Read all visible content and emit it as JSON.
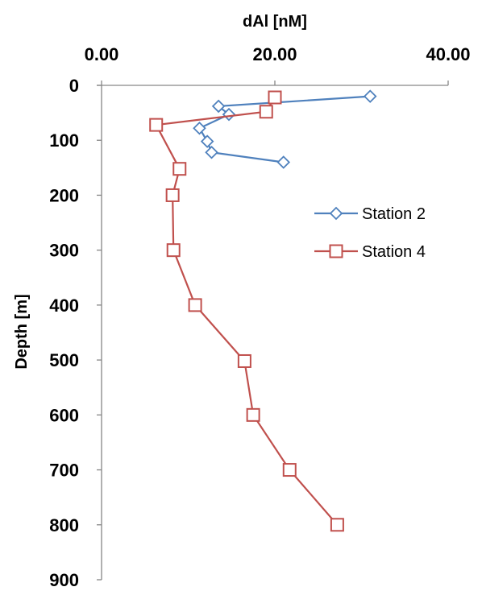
{
  "chart_data": {
    "type": "scatter",
    "xlabel": "dAl [nM]",
    "ylabel": "Depth [m]",
    "x_axis_position": "top",
    "y_axis_reversed": true,
    "xlim": [
      0,
      40
    ],
    "ylim": [
      0,
      900
    ],
    "x_ticks": [
      0,
      20,
      40
    ],
    "x_tick_labels": [
      "0.00",
      "20.00",
      "40.00"
    ],
    "y_ticks": [
      0,
      100,
      200,
      300,
      400,
      500,
      600,
      700,
      800,
      900
    ],
    "y_tick_labels": [
      "0",
      "100",
      "200",
      "300",
      "400",
      "500",
      "600",
      "700",
      "800",
      "900"
    ],
    "grid": false,
    "legend_position": "right",
    "series": [
      {
        "name": "Station 2",
        "color": "#4f81bd",
        "marker": "diamond",
        "points": [
          {
            "x": 31.0,
            "y": 20
          },
          {
            "x": 13.5,
            "y": 38
          },
          {
            "x": 14.7,
            "y": 53
          },
          {
            "x": 11.3,
            "y": 78
          },
          {
            "x": 12.2,
            "y": 102
          },
          {
            "x": 12.7,
            "y": 122
          },
          {
            "x": 21.0,
            "y": 140
          }
        ]
      },
      {
        "name": "Station 4",
        "color": "#c0504d",
        "marker": "square",
        "points": [
          {
            "x": 20.0,
            "y": 22
          },
          {
            "x": 19.0,
            "y": 48
          },
          {
            "x": 6.3,
            "y": 72
          },
          {
            "x": 9.0,
            "y": 152
          },
          {
            "x": 8.2,
            "y": 200
          },
          {
            "x": 8.3,
            "y": 300
          },
          {
            "x": 10.8,
            "y": 400
          },
          {
            "x": 16.5,
            "y": 502
          },
          {
            "x": 17.5,
            "y": 600
          },
          {
            "x": 21.7,
            "y": 700
          },
          {
            "x": 27.2,
            "y": 800
          }
        ]
      }
    ]
  }
}
